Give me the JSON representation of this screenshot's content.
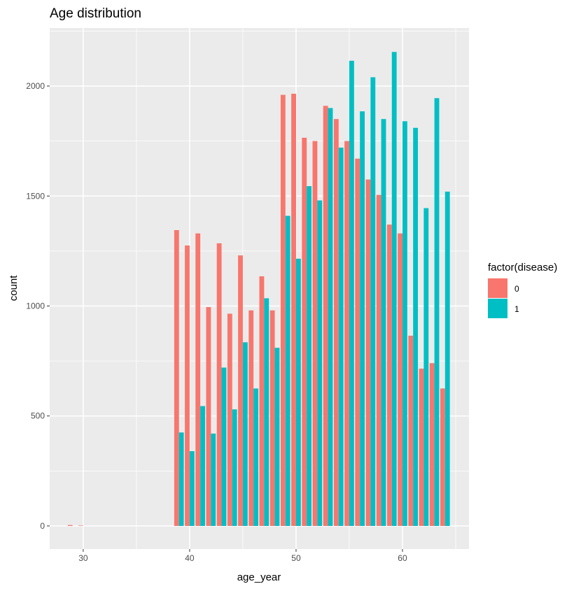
{
  "chart_data": {
    "type": "bar",
    "title": "Age distribution",
    "xlabel": "age_year",
    "ylabel": "count",
    "xlim": [
      26.85,
      66.25
    ],
    "ylim": [
      -105,
      2264
    ],
    "xticks": [
      30,
      40,
      50,
      60
    ],
    "yticks": [
      0,
      500,
      1000,
      1500,
      2000
    ],
    "grid": true,
    "legend": {
      "title": "factor(disease)",
      "placement": "right"
    },
    "x": [
      29,
      30,
      39,
      40,
      41,
      42,
      43,
      44,
      45,
      46,
      47,
      48,
      49,
      50,
      51,
      52,
      53,
      54,
      55,
      56,
      57,
      58,
      59,
      60,
      61,
      62,
      63,
      64
    ],
    "series": [
      {
        "name": "0",
        "color": "#F8766D",
        "values": [
          4,
          2,
          1345,
          1275,
          1330,
          995,
          1285,
          965,
          1230,
          980,
          1135,
          980,
          1960,
          1965,
          1765,
          1750,
          1910,
          1850,
          1750,
          1670,
          1575,
          1505,
          1370,
          1330,
          865,
          715,
          740,
          625
        ]
      },
      {
        "name": "1",
        "color": "#00BFC4",
        "values": [
          0,
          0,
          425,
          340,
          545,
          420,
          720,
          530,
          835,
          625,
          1035,
          810,
          1410,
          1215,
          1545,
          1480,
          1900,
          1720,
          2115,
          1885,
          2040,
          1850,
          2155,
          1840,
          1810,
          1445,
          1945,
          1520
        ]
      }
    ]
  }
}
